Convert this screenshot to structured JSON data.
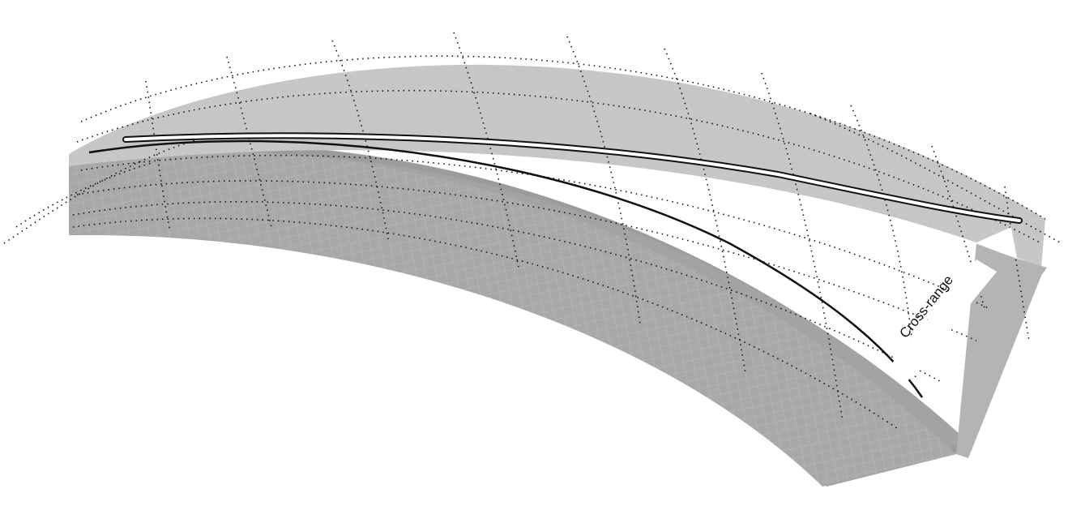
{
  "diagram": {
    "annotation_label": "Cross-range",
    "colors": {
      "background": "#ffffff",
      "surface_top": "#c6c6c6",
      "surface_front": "#a8a8a8",
      "surface_shadow": "#9a9a9a",
      "fine_grid": "#d8d8d8",
      "dotted_grid": "#111111",
      "track_outline": "#111111",
      "track_highlight": "#ffffff",
      "arrow_fill": "#ffffff"
    },
    "elements": {
      "surface": "curved-earth-surface",
      "ground_track": "downrange-ground-track",
      "reentry_path": "reentry-trajectory",
      "arrow": "cross-range-arrow"
    }
  }
}
